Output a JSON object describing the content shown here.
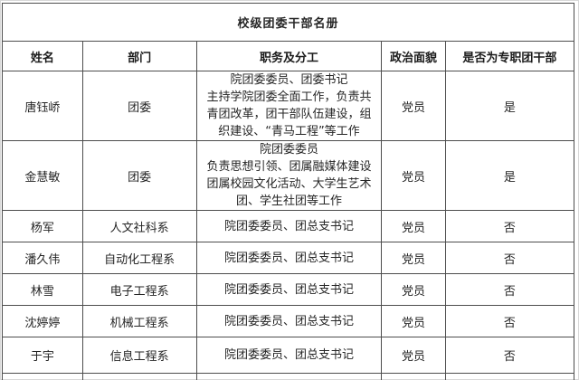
{
  "title": "校级团委干部名册",
  "table": {
    "headers": [
      "姓名",
      "部门",
      "职务及分工",
      "政治面貌",
      "是否为专职团干部"
    ],
    "rows": [
      {
        "name": "唐钰峤",
        "department": "团委",
        "duty": "院团委委员、团委书记\n主持学院团委全面工作，负责共\n青团改革，团干部队伍建设，组\n织建设、“青马工程”等工作",
        "political_status": "党员",
        "full_time": "是"
      },
      {
        "name": "金慧敏",
        "department": "团委",
        "duty": "院团委委员\n负责思想引领、团属融媒体建设\n团属校园文化活动、大学生艺术\n团、学生社团等工作",
        "political_status": "党员",
        "full_time": "是"
      },
      {
        "name": "杨军",
        "department": "人文社科系",
        "duty": "院团委委员、团总支书记",
        "political_status": "党员",
        "full_time": "否"
      },
      {
        "name": "潘久伟",
        "department": "自动化工程系",
        "duty": "院团委委员、团总支书记",
        "political_status": "党员",
        "full_time": "否"
      },
      {
        "name": "林雪",
        "department": "电子工程系",
        "duty": "院团委委员、团总支书记",
        "political_status": "党员",
        "full_time": "否"
      },
      {
        "name": "沈婷婷",
        "department": "机械工程系",
        "duty": "院团委委员、团总支书记",
        "political_status": "党员",
        "full_time": "否"
      },
      {
        "name": "于宇",
        "department": "信息工程系",
        "duty": "院团委委员、团总支书记",
        "political_status": "党员",
        "full_time": "否"
      }
    ]
  },
  "colors": {
    "border": "#4d4d4d",
    "text": "#262626",
    "background": "#ffffff"
  }
}
